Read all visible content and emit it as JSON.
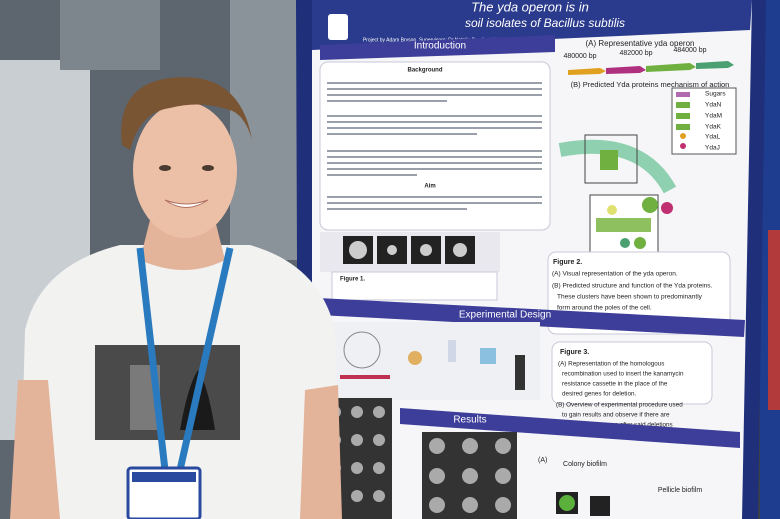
{
  "poster": {
    "title_line1": "The yda operon is in",
    "title_line2": "soil isolates of Bacillus subtilis",
    "authors": "Project by Adam Bryson, Supervisors: Dr Natalie Bamford, Prof Nicola Stanley-Wall",
    "introduction": "Introduction",
    "background": "Background",
    "aim": "Aim",
    "figure1": "Figure 1.",
    "panel_a": "(A) Representative yda operon",
    "bp": [
      "480000 bp",
      "482000 bp",
      "484000 bp"
    ],
    "panel_b": "(B) Predicted Yda proteins mechanism of action",
    "legend": [
      "Sugars",
      "YdaN",
      "YdaM",
      "YdaK",
      "YdaL",
      "YdaJ"
    ],
    "figure2": "Figure 2.",
    "figure2_a": "(A) Visual representation of the yda operon.",
    "figure2_b": [
      "(B) Predicted structure and function of the Yda proteins.",
      "These clusters have been shown to predominantly",
      "form around the poles of the cell."
    ],
    "experimental_design": "Experimental Design",
    "figure3": "Figure 3.",
    "figure3_a": [
      "(A) Representation of the homologous",
      "recombination used to insert the kanamycin",
      "resistance cassette in the place of the",
      "desired genes for deletion."
    ],
    "figure3_b": [
      "(B) Overview of experimental procedure used",
      "to gain results and observe if there are",
      "phenotypic changes after said deletions"
    ],
    "results": "Results",
    "results_a": "(A)",
    "colony_biofilm": "Colony biofilm",
    "pellicle_biofilm": "Pellicle biofilm"
  }
}
